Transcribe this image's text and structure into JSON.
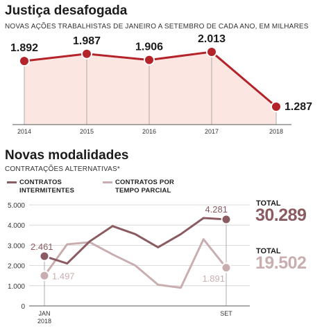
{
  "section1": {
    "title": "Justiça desafogada",
    "subtitle": "NOVAS AÇÕES TRABALHISTAS DE JANEIRO A SETEMBRO DE CADA ANO, EM MILHARES"
  },
  "section2": {
    "title": "Novas modalidades",
    "subtitle": "CONTRATAÇÕES ALTERNATIVAS*",
    "legend": [
      {
        "label": "CONTRATOS INTERMITENTES",
        "color": "#8a5c62"
      },
      {
        "label": "CONTRATOS POR TEMPO PARCIAL",
        "color": "#c9aeb0"
      }
    ],
    "totals": [
      {
        "label": "TOTAL",
        "value": "30.289",
        "color": "#8a5c62"
      },
      {
        "label": "TOTAL",
        "value": "19.502",
        "color": "#c9aeb0"
      }
    ]
  },
  "colors": {
    "accent_red": "#b5232a",
    "area_fill": "#fbe6e1",
    "intermittent": "#8a5c62",
    "part_time": "#c9aeb0"
  },
  "chart_data": [
    {
      "type": "area",
      "title": "Justiça desafogada",
      "subtitle": "NOVAS AÇÕES TRABALHISTAS DE JANEIRO A SETEMBRO DE CADA ANO, EM MILHARES",
      "categories": [
        "2014",
        "2015",
        "2016",
        "2017",
        "2018"
      ],
      "values": [
        1892,
        1987,
        1906,
        2013,
        1287
      ],
      "data_labels": [
        "1.892",
        "1.987",
        "1.906",
        "2.013",
        "1.287"
      ],
      "ylim": [
        1050,
        2150
      ],
      "grid": false
    },
    {
      "type": "line",
      "title": "Novas modalidades",
      "subtitle": "CONTRATAÇÕES ALTERNATIVAS*",
      "x_tick_labels": [
        "JAN 2018",
        "SET"
      ],
      "series": [
        {
          "name": "CONTRATOS INTERMITENTES",
          "values": [
            2461,
            2100,
            3200,
            3950,
            3550,
            2900,
            3550,
            4350,
            4281
          ]
        },
        {
          "name": "CONTRATOS POR TEMPO PARCIAL",
          "values": [
            1497,
            3050,
            3150,
            2550,
            2000,
            1050,
            900,
            3300,
            1891
          ]
        }
      ],
      "endpoint_labels": {
        "CONTRATOS INTERMITENTES": [
          "2.461",
          "4.281"
        ],
        "CONTRATOS POR TEMPO PARCIAL": [
          "1.497",
          "1.891"
        ]
      },
      "ylim": [
        0,
        5000
      ],
      "yticks": [
        0,
        1000,
        2000,
        3000,
        4000,
        5000
      ],
      "ytick_labels": [
        "0",
        "1.000",
        "2.000",
        "3.000",
        "4.000",
        "5.000"
      ],
      "grid": true,
      "totals": {
        "CONTRATOS INTERMITENTES": "30.289",
        "CONTRATOS POR TEMPO PARCIAL": "19.502"
      }
    }
  ]
}
